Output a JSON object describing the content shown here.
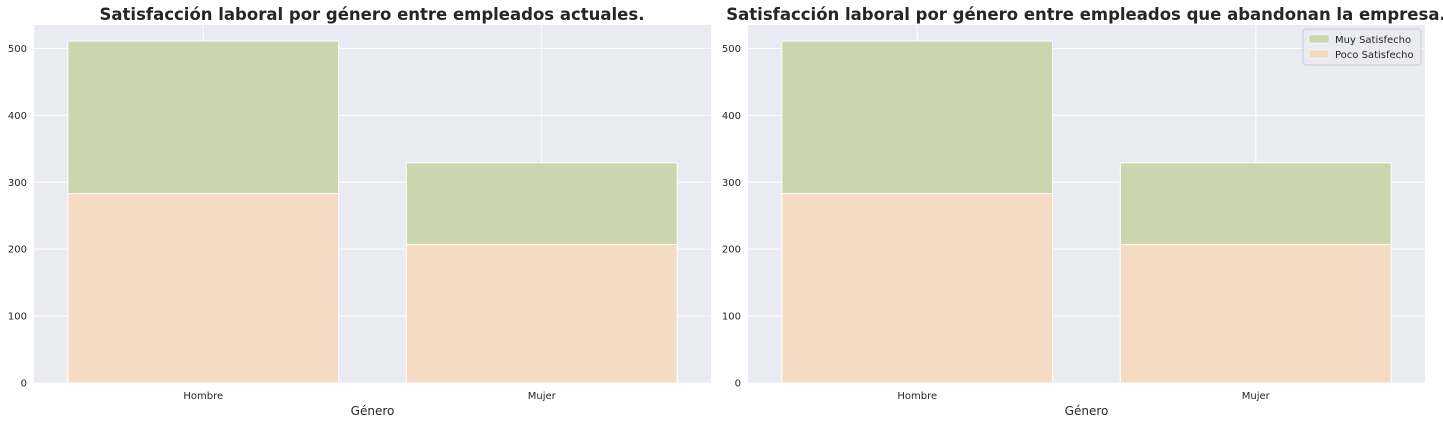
{
  "chart_data": [
    {
      "type": "bar",
      "stacked": false,
      "overlapping": true,
      "title": "Satisfacción laboral por género entre empleados actuales.",
      "xlabel": "Género",
      "ylabel": "",
      "categories": [
        "Hombre",
        "Mujer"
      ],
      "series": [
        {
          "name": "Muy Satisfecho",
          "color": "#cdd5ae",
          "values": [
            511,
            329
          ]
        },
        {
          "name": "Poco Satisfecho",
          "color": "#f6dbc4",
          "values": [
            283,
            207
          ]
        }
      ],
      "ylim": [
        0,
        535
      ],
      "yticks": [
        0,
        100,
        200,
        300,
        400,
        500
      ],
      "grid": true,
      "legend": null
    },
    {
      "type": "bar",
      "stacked": false,
      "overlapping": true,
      "title": "Satisfacción laboral por género entre empleados que abandonan la empresa.",
      "xlabel": "Género",
      "ylabel": "",
      "categories": [
        "Hombre",
        "Mujer"
      ],
      "series": [
        {
          "name": "Muy Satisfecho",
          "color": "#cdd5ae",
          "values": [
            511,
            329
          ]
        },
        {
          "name": "Poco Satisfecho",
          "color": "#f6dbc4",
          "values": [
            283,
            207
          ]
        }
      ],
      "ylim": [
        0,
        535
      ],
      "yticks": [
        0,
        100,
        200,
        300,
        400,
        500
      ],
      "grid": true,
      "legend": "top-right"
    }
  ],
  "colors": {
    "plot_background": "#eaeaf2",
    "grid": "#ffffff",
    "text": "#262626"
  }
}
